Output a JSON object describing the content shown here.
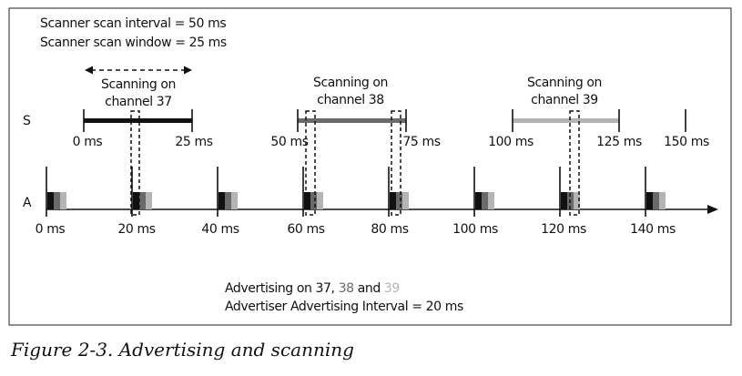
{
  "scanner": {
    "interval_text": "Scanner scan interval = 50 ms",
    "window_text": "Scanner scan window = 25 ms",
    "row_label": "S",
    "windows": [
      {
        "label_line1": "Scanning on",
        "label_line2": "channel 37",
        "start_ms": 0,
        "end_ms": 25,
        "start_label": "0 ms",
        "end_label": "25 ms",
        "color": "#111111"
      },
      {
        "label_line1": "Scanning on",
        "label_line2": "channel 38",
        "start_ms": 50,
        "end_ms": 75,
        "start_label": "50 ms",
        "end_label": "75 ms",
        "color": "#6a6a6a"
      },
      {
        "label_line1": "Scanning on",
        "label_line2": "channel 39",
        "start_ms": 100,
        "end_ms": 125,
        "start_label": "100 ms",
        "end_label": "125 ms",
        "color": "#b4b4b4"
      }
    ],
    "extra_tick_label": "150 ms"
  },
  "advertiser": {
    "row_label": "A",
    "tick_labels": [
      "0 ms",
      "20 ms",
      "40 ms",
      "60 ms",
      "80 ms",
      "100 ms",
      "120 ms",
      "140 ms"
    ],
    "legend_prefix": "Advertising on 37, ",
    "legend_38": "38",
    "legend_and": " and ",
    "legend_39": "39",
    "interval_text": "Advertiser Advertising Interval = 20 ms",
    "channel_colors": [
      "#111111",
      "#6a6a6a",
      "#b4b4b4"
    ]
  },
  "caption": "Figure 2-3. Advertising and scanning"
}
